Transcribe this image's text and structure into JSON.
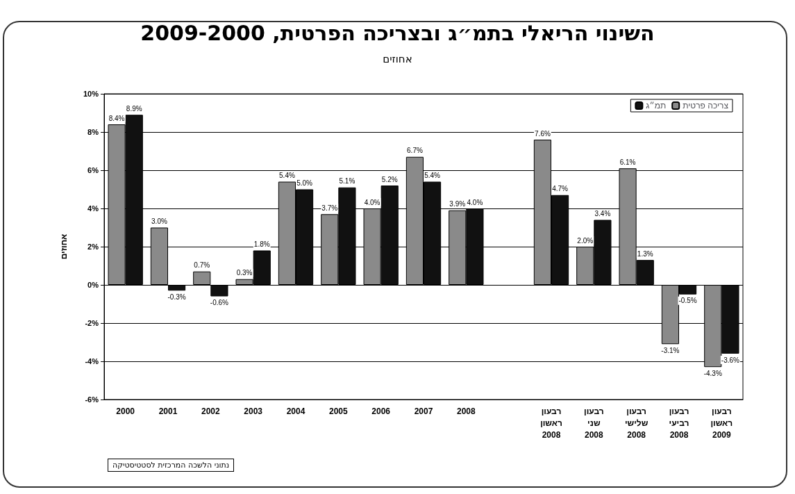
{
  "chart_data": {
    "type": "bar",
    "title": "השינוי הריאלי בתמ״ג ובצריכה הפרטית, 2009-2000",
    "subtitle": "אחוזים",
    "ylabel": "אחוזים",
    "categories": [
      "2000",
      "2001",
      "2002",
      "2003",
      "2004",
      "2005",
      "2006",
      "2007",
      "2008",
      null,
      "רבעון\nראשון\n2008",
      "רבעון\nשני\n2008",
      "רבעון\nשלישי\n2008",
      "רבעון\nרביעי\n2008",
      "רבעון\nראשון\n2009"
    ],
    "series": [
      {
        "name": "צריכה פרטית",
        "color": "#8a8a8a",
        "values": [
          8.4,
          3.0,
          0.7,
          0.3,
          5.4,
          3.7,
          4.0,
          6.7,
          3.9,
          null,
          7.6,
          2.0,
          6.1,
          -3.1,
          -4.3
        ],
        "value_labels": [
          "8.4%",
          "3.0%",
          "0.7%",
          "0.3%",
          "5.4%",
          "3.7%",
          "4.0%",
          "6.7%",
          "3.9%",
          null,
          "7.6%",
          "2.0%",
          "6.1%",
          "-3.1%",
          "-4.3%"
        ]
      },
      {
        "name": "תמ״ג",
        "color": "#111111",
        "values": [
          8.9,
          -0.3,
          -0.6,
          1.8,
          5.0,
          5.1,
          5.2,
          5.4,
          4.0,
          null,
          4.7,
          3.4,
          1.3,
          -0.5,
          -3.6
        ],
        "value_labels": [
          "8.9%",
          "-0.3%",
          "-0.6%",
          "1.8%",
          "5.0%",
          "5.1%",
          "5.2%",
          "5.4%",
          "4.0%",
          null,
          "4.7%",
          "3.4%",
          "1.3%",
          "-0.5%",
          "-3.6%"
        ]
      }
    ],
    "ylim": [
      -6,
      10
    ],
    "yticks": [
      {
        "value": -6,
        "label": "-6%"
      },
      {
        "value": -4,
        "label": "-4%"
      },
      {
        "value": -2,
        "label": "-2%"
      },
      {
        "value": 0,
        "label": "0%"
      },
      {
        "value": 2,
        "label": "2%"
      },
      {
        "value": 4,
        "label": "4%"
      },
      {
        "value": 6,
        "label": "6%"
      },
      {
        "value": 8,
        "label": "8%"
      },
      {
        "value": 10,
        "label": "10%"
      }
    ],
    "grid": "y",
    "legend": "top right",
    "annotations": [
      "נתוני הלשכה המרכזית לסטטיסטיקה"
    ]
  }
}
